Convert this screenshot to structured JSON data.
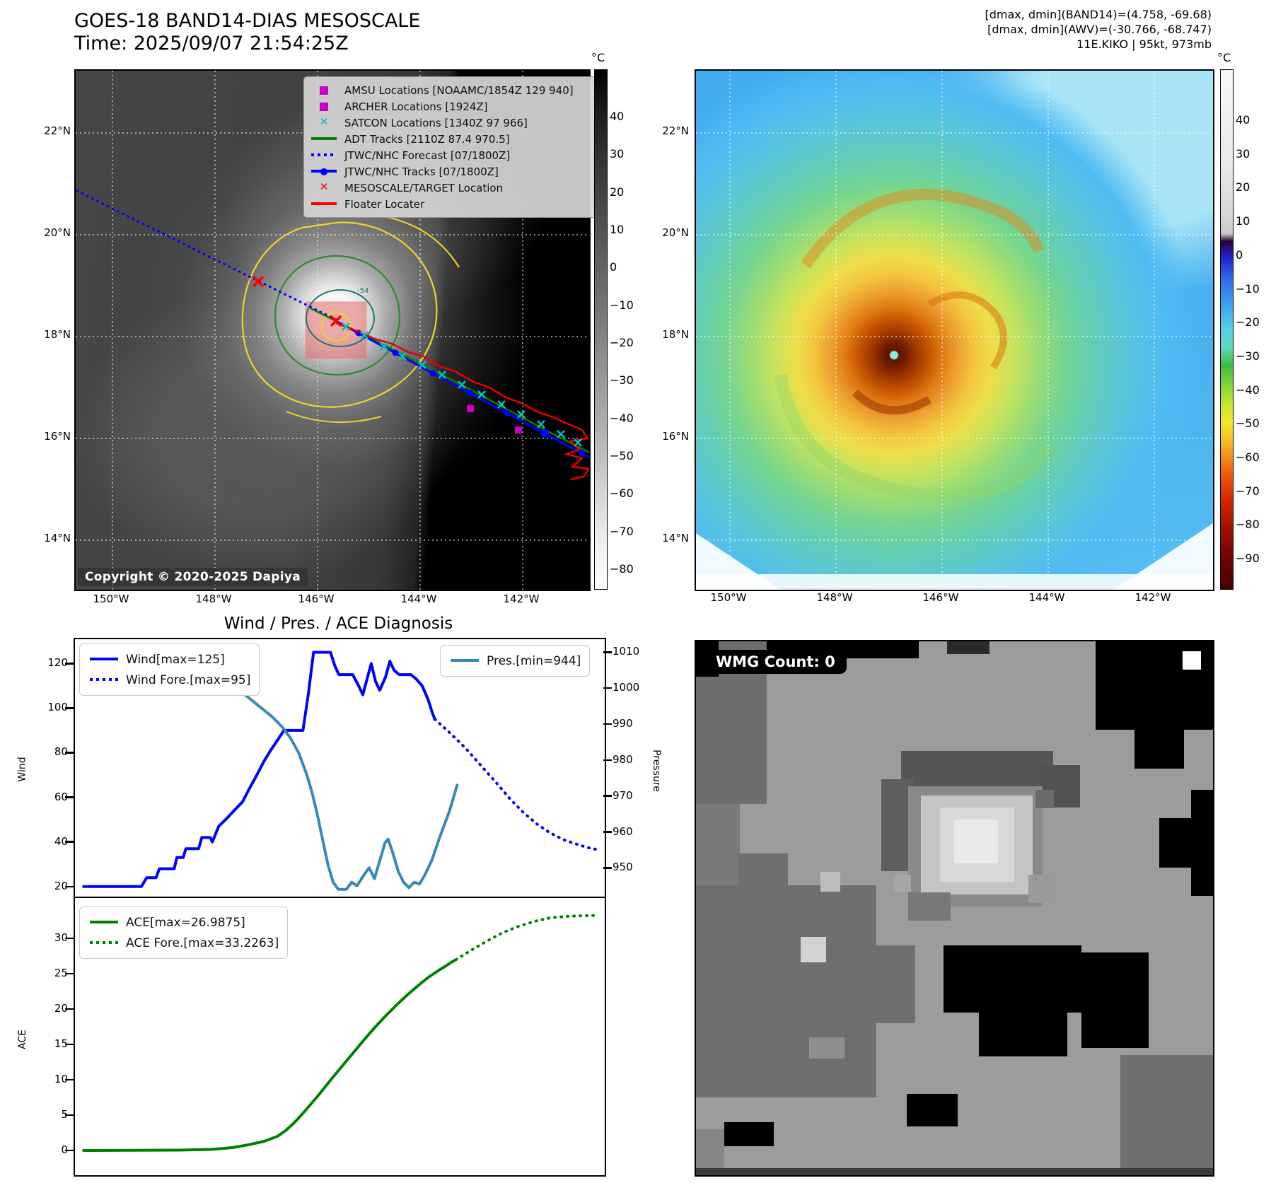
{
  "header": {
    "left": {
      "line1": "GOES-18 BAND14-DIAS MESOSCALE",
      "line2": "Time: 2025/09/07 21:54:25Z"
    },
    "right": {
      "line1": "[dmax, dmin](BAND14)=(4.758, -69.68)",
      "line2": "[dmax, dmin](AWV)=(-30.766, -68.747)",
      "line3": "11E.KIKO | 95kt, 973mb"
    }
  },
  "left_map": {
    "copyright": "Copyright © 2020-2025 Dapiya",
    "contour_label": "-54",
    "lat_labels": [
      "22°N",
      "20°N",
      "18°N",
      "16°N",
      "14°N"
    ],
    "lon_labels": [
      "150°W",
      "148°W",
      "146°W",
      "144°W",
      "142°W"
    ],
    "colorbar": {
      "unit": "°C",
      "ticks": [
        "40",
        "30",
        "20",
        "10",
        "0",
        "−10",
        "−20",
        "−30",
        "−40",
        "−50",
        "−60",
        "−70",
        "−80"
      ]
    },
    "legend": [
      {
        "marker": "square",
        "color": "#c800c8",
        "label": "AMSU Locations [NOAAMC/1854Z 129 940]"
      },
      {
        "marker": "square",
        "color": "#c800c8",
        "label": "ARCHER Locations [1924Z]"
      },
      {
        "marker": "x",
        "color": "#00bcbc",
        "label": "SATCON Locations [1340Z 97 966]"
      },
      {
        "marker": "line",
        "color": "#008000",
        "label": "ADT Tracks [2110Z 87.4 970.5]"
      },
      {
        "marker": "dotted",
        "color": "#0000ff",
        "label": "JTWC/NHC Forecast [07/1800Z]"
      },
      {
        "marker": "line-dot",
        "color": "#0000ff",
        "label": "JTWC/NHC Tracks [07/1800Z]"
      },
      {
        "marker": "x",
        "color": "#ff0000",
        "label": "MESOSCALE/TARGET Location"
      },
      {
        "marker": "line",
        "color": "#ff0000",
        "label": "Floater Locater"
      }
    ]
  },
  "right_map": {
    "lat_labels": [
      "22°N",
      "20°N",
      "18°N",
      "16°N",
      "14°N"
    ],
    "lon_labels": [
      "150°W",
      "148°W",
      "146°W",
      "144°W",
      "142°W"
    ],
    "colorbar": {
      "unit": "°C",
      "ticks": [
        "40",
        "30",
        "20",
        "10",
        "0",
        "−10",
        "−20",
        "−30",
        "−40",
        "−50",
        "−60",
        "−70",
        "−80",
        "−90"
      ]
    }
  },
  "wmg": {
    "label": "WMG Count: 0"
  },
  "chart_data": [
    {
      "type": "line",
      "title": "Wind / Pres. / ACE Diagnosis",
      "panel": "wind_pressure",
      "grid": false,
      "left_axis": {
        "label": "Wind",
        "ticks": [
          20,
          40,
          60,
          80,
          100,
          120
        ],
        "range": [
          15.5,
          131.5
        ]
      },
      "right_axis": {
        "label": "Pressure",
        "ticks": [
          950,
          960,
          970,
          980,
          990,
          1000,
          1010
        ],
        "range": [
          942,
          1014
        ]
      },
      "series": [
        {
          "name": "Wind[max=125]",
          "axis": "left",
          "style": "solid",
          "color": "#0000ff",
          "points": [
            [
              0.019,
              20
            ],
            [
              0.128,
              20
            ],
            [
              0.138,
              24
            ],
            [
              0.156,
              24
            ],
            [
              0.162,
              28
            ],
            [
              0.19,
              28
            ],
            [
              0.195,
              33
            ],
            [
              0.207,
              33
            ],
            [
              0.212,
              37
            ],
            [
              0.236,
              37
            ],
            [
              0.242,
              42
            ],
            [
              0.258,
              42
            ],
            [
              0.262,
              40
            ],
            [
              0.274,
              47
            ],
            [
              0.287,
              50
            ],
            [
              0.303,
              54
            ],
            [
              0.319,
              58
            ],
            [
              0.332,
              64
            ],
            [
              0.346,
              70
            ],
            [
              0.359,
              76
            ],
            [
              0.372,
              81
            ],
            [
              0.386,
              86
            ],
            [
              0.397,
              90
            ],
            [
              0.433,
              90
            ],
            [
              0.443,
              106
            ],
            [
              0.453,
              125
            ],
            [
              0.485,
              125
            ],
            [
              0.493,
              119
            ],
            [
              0.501,
              115
            ],
            [
              0.527,
              115
            ],
            [
              0.538,
              110
            ],
            [
              0.546,
              106
            ],
            [
              0.554,
              113
            ],
            [
              0.562,
              120
            ],
            [
              0.57,
              112
            ],
            [
              0.578,
              108
            ],
            [
              0.589,
              114
            ],
            [
              0.597,
              121
            ],
            [
              0.605,
              117
            ],
            [
              0.615,
              115
            ],
            [
              0.637,
              115
            ],
            [
              0.647,
              113
            ],
            [
              0.658,
              110
            ],
            [
              0.669,
              104
            ],
            [
              0.677,
              98
            ],
            [
              0.682,
              95
            ]
          ]
        },
        {
          "name": "Wind Fore.[max=95]",
          "axis": "left",
          "style": "dotted",
          "color": "#0000ff",
          "points": [
            [
              0.682,
              95
            ],
            [
              0.71,
              89
            ],
            [
              0.74,
              82
            ],
            [
              0.77,
              74
            ],
            [
              0.8,
              66
            ],
            [
              0.825,
              59
            ],
            [
              0.85,
              53
            ],
            [
              0.875,
              48
            ],
            [
              0.9,
              44
            ],
            [
              0.925,
              41
            ],
            [
              0.95,
              39
            ],
            [
              0.97,
              37.5
            ],
            [
              0.99,
              36.5
            ]
          ]
        },
        {
          "name": "Pres.[min=944]",
          "axis": "right",
          "style": "solid",
          "color": "#3a87b7",
          "points": [
            [
              0.019,
              1004
            ],
            [
              0.1,
              1004
            ],
            [
              0.16,
              1003
            ],
            [
              0.22,
              1002
            ],
            [
              0.27,
              1001
            ],
            [
              0.3,
              1000
            ],
            [
              0.325,
              998
            ],
            [
              0.35,
              995
            ],
            [
              0.375,
              992
            ],
            [
              0.395,
              989
            ],
            [
              0.41,
              986
            ],
            [
              0.425,
              982
            ],
            [
              0.44,
              976
            ],
            [
              0.45,
              971
            ],
            [
              0.46,
              965
            ],
            [
              0.47,
              958
            ],
            [
              0.48,
              951
            ],
            [
              0.49,
              946
            ],
            [
              0.5,
              944
            ],
            [
              0.515,
              944
            ],
            [
              0.525,
              946
            ],
            [
              0.535,
              945
            ],
            [
              0.548,
              948
            ],
            [
              0.558,
              950
            ],
            [
              0.568,
              947
            ],
            [
              0.578,
              952
            ],
            [
              0.588,
              957
            ],
            [
              0.594,
              958
            ],
            [
              0.603,
              954
            ],
            [
              0.613,
              949
            ],
            [
              0.623,
              946
            ],
            [
              0.633,
              944.5
            ],
            [
              0.643,
              946
            ],
            [
              0.653,
              945.5
            ],
            [
              0.663,
              948
            ],
            [
              0.676,
              952
            ],
            [
              0.69,
              958
            ],
            [
              0.7,
              962
            ],
            [
              0.71,
              966
            ],
            [
              0.718,
              970
            ],
            [
              0.724,
              973
            ]
          ]
        }
      ]
    },
    {
      "type": "line",
      "panel": "ace",
      "grid": false,
      "left_axis": {
        "label": "ACE",
        "ticks": [
          0,
          5,
          10,
          15,
          20,
          25,
          30
        ],
        "range": [
          -3.3,
          35.9
        ]
      },
      "series": [
        {
          "name": "ACE[max=26.9875]",
          "axis": "left",
          "style": "solid",
          "color": "#008000",
          "points": [
            [
              0.019,
              0
            ],
            [
              0.2,
              0.05
            ],
            [
              0.26,
              0.15
            ],
            [
              0.3,
              0.4
            ],
            [
              0.33,
              0.8
            ],
            [
              0.36,
              1.3
            ],
            [
              0.385,
              2.0
            ],
            [
              0.4,
              2.8
            ],
            [
              0.415,
              3.8
            ],
            [
              0.43,
              5.0
            ],
            [
              0.445,
              6.3
            ],
            [
              0.46,
              7.6
            ],
            [
              0.475,
              9.0
            ],
            [
              0.49,
              10.4
            ],
            [
              0.51,
              12.2
            ],
            [
              0.53,
              14.0
            ],
            [
              0.55,
              15.8
            ],
            [
              0.57,
              17.5
            ],
            [
              0.59,
              19.1
            ],
            [
              0.61,
              20.6
            ],
            [
              0.63,
              22.0
            ],
            [
              0.65,
              23.3
            ],
            [
              0.67,
              24.5
            ],
            [
              0.69,
              25.5
            ],
            [
              0.705,
              26.2
            ],
            [
              0.715,
              26.7
            ],
            [
              0.722,
              26.99
            ]
          ]
        },
        {
          "name": "ACE Fore.[max=33.2263]",
          "axis": "left",
          "style": "dotted",
          "color": "#008000",
          "points": [
            [
              0.722,
              26.99
            ],
            [
              0.75,
              28.3
            ],
            [
              0.78,
              29.6
            ],
            [
              0.81,
              30.8
            ],
            [
              0.84,
              31.7
            ],
            [
              0.87,
              32.4
            ],
            [
              0.9,
              32.9
            ],
            [
              0.93,
              33.1
            ],
            [
              0.96,
              33.2
            ],
            [
              0.99,
              33.23
            ]
          ]
        }
      ]
    }
  ]
}
